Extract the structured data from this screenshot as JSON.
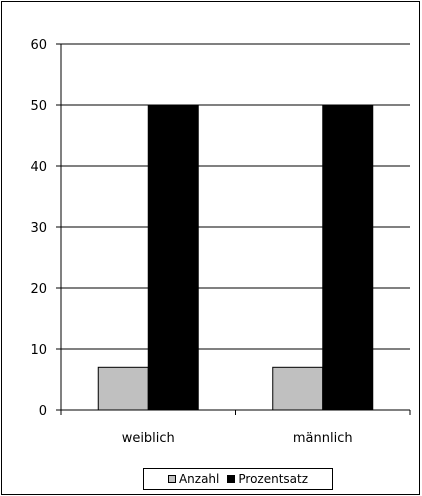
{
  "chart_data": {
    "type": "bar",
    "title": "",
    "xlabel": "",
    "ylabel": "",
    "categories": [
      "weiblich",
      "männlich"
    ],
    "series": [
      {
        "name": "Anzahl",
        "values": [
          7,
          7
        ],
        "color": "#c0c0c0"
      },
      {
        "name": "Prozentsatz",
        "values": [
          50,
          50
        ],
        "color": "#000000"
      }
    ],
    "ylim": [
      0,
      60
    ],
    "yticks": [
      0,
      10,
      20,
      30,
      40,
      50,
      60
    ],
    "ytick_labels": [
      "0",
      "10",
      "20",
      "30",
      "40",
      "50",
      "60"
    ],
    "grid": true,
    "legend_position": "bottom"
  }
}
